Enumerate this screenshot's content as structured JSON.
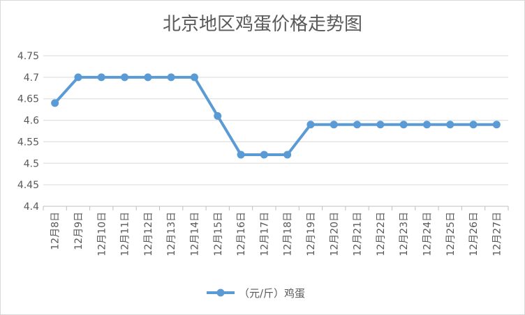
{
  "chart_data": {
    "type": "line",
    "title": "北京地区鸡蛋价格走势图",
    "categories": [
      "12月8日",
      "12月9日",
      "12月10日",
      "12月11日",
      "12月12日",
      "12月13日",
      "12月14日",
      "12月15日",
      "12月16日",
      "12月17日",
      "12月18日",
      "12月19日",
      "12月20日",
      "12月21日",
      "12月22日",
      "12月23日",
      "12月24日",
      "12月25日",
      "12月26日",
      "12月27日"
    ],
    "series": [
      {
        "name": "（元/斤）鸡蛋",
        "values": [
          4.64,
          4.7,
          4.7,
          4.7,
          4.7,
          4.7,
          4.7,
          4.61,
          4.52,
          4.52,
          4.52,
          4.59,
          4.59,
          4.59,
          4.59,
          4.59,
          4.59,
          4.59,
          4.59,
          4.59
        ],
        "color": "#5b9bd5"
      }
    ],
    "ylim": [
      4.4,
      4.75
    ],
    "yticks": [
      "4.4",
      "4.45",
      "4.5",
      "4.55",
      "4.6",
      "4.65",
      "4.7",
      "4.75"
    ],
    "grid": true,
    "legend": "bottom"
  }
}
